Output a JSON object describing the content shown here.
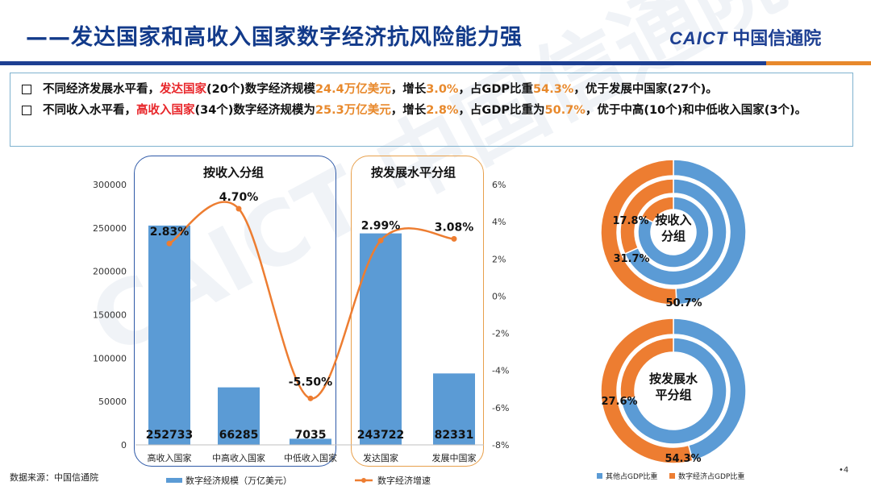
{
  "header": {
    "title": "——发达国家和高收入国家数字经济抗风险能力强",
    "brand_caict": "CAICT",
    "brand_org": "中国信通院"
  },
  "summary": {
    "line1": {
      "p1": "不同经济发展水平看，",
      "p2": "发达国家",
      "p3": "(20个)数字经济规模",
      "p4": "24.4万亿美元",
      "p5": "，增长",
      "p6": "3.0%",
      "p7": "，占GDP比重",
      "p8": "54.3%",
      "p9": "，优于发展中国家(27个)。"
    },
    "line2": {
      "p1": "不同收入水平看，",
      "p2": "高收入国家",
      "p3": "(34个)数字经济规模为",
      "p4": "25.3万亿美元",
      "p5": "，增长",
      "p6": "2.8%",
      "p7": "，占GDP比重为",
      "p8": "50.7%",
      "p9": "，优于中高(10个)和中低收入国家(3个)。"
    }
  },
  "chart_data": [
    {
      "type": "bar",
      "group_titles": [
        "按收入分组",
        "按发展水平分组"
      ],
      "categories": [
        "高收入国家",
        "中高收入国家",
        "中低收入国家",
        "发达国家",
        "发展中国家"
      ],
      "series": [
        {
          "name": "数字经济规模（万亿美元）",
          "type": "bar",
          "values": [
            252733,
            66285,
            7035,
            243722,
            82331
          ],
          "labels": [
            "252733",
            "66285",
            "7035",
            "243722",
            "82331"
          ],
          "color": "#5b9bd5"
        },
        {
          "name": "数字经济增速",
          "type": "line",
          "axis": "right",
          "values": [
            2.83,
            4.7,
            -5.5,
            2.99,
            3.08
          ],
          "labels": [
            "2.83%",
            "4.70%",
            "-5.50%",
            "2.99%",
            "3.08%"
          ],
          "color": "#ed7d31"
        }
      ],
      "y_left": {
        "min": 0,
        "max": 300000,
        "ticks": [
          "0",
          "50000",
          "100000",
          "150000",
          "200000",
          "250000",
          "300000"
        ]
      },
      "y_right": {
        "min": -8,
        "max": 6,
        "ticks": [
          "-8%",
          "-6%",
          "-4%",
          "-2%",
          "0%",
          "2%",
          "4%",
          "6%"
        ]
      }
    },
    {
      "type": "pie",
      "title": "按收入\n分组",
      "title_lines": [
        "按收入",
        "分组"
      ],
      "rings": [
        {
          "slices": [
            {
              "name": "数字经济占GDP比重",
              "value": 50.7,
              "label": "50.7%"
            },
            {
              "name": "其他占GDP比重",
              "value": 49.3
            }
          ]
        },
        {
          "slices": [
            {
              "name": "数字经济占GDP比重",
              "value": 31.7,
              "label": "31.7%"
            },
            {
              "name": "其他占GDP比重",
              "value": 68.3
            }
          ]
        },
        {
          "slices": [
            {
              "name": "数字经济占GDP比重",
              "value": 17.8,
              "label": "17.8%"
            },
            {
              "name": "其他占GDP比重",
              "value": 82.2
            }
          ]
        }
      ]
    },
    {
      "type": "pie",
      "title": "按发展水\n平分组",
      "title_lines": [
        "按发展水",
        "平分组"
      ],
      "rings": [
        {
          "slices": [
            {
              "name": "数字经济占GDP比重",
              "value": 54.3,
              "label": "54.3%"
            },
            {
              "name": "其他占GDP比重",
              "value": 45.7
            }
          ]
        },
        {
          "slices": [
            {
              "name": "数字经济占GDP比重",
              "value": 27.6,
              "label": "27.6%"
            },
            {
              "name": "其他占GDP比重",
              "value": 72.4
            }
          ]
        }
      ],
      "legend": [
        {
          "name": "其他占GDP比重",
          "color": "#5b9bd5"
        },
        {
          "name": "数字经济占GDP比重",
          "color": "#ed7d31"
        }
      ]
    }
  ],
  "footer": {
    "source": "数据来源：中国信通院",
    "page": "•4"
  },
  "watermark": "CAICT 中国信通院",
  "colors": {
    "brand": "#1d3f92",
    "bar": "#5b9bd5",
    "line": "#ed7d31",
    "red": "#e8262a",
    "orange": "#e8892c"
  }
}
